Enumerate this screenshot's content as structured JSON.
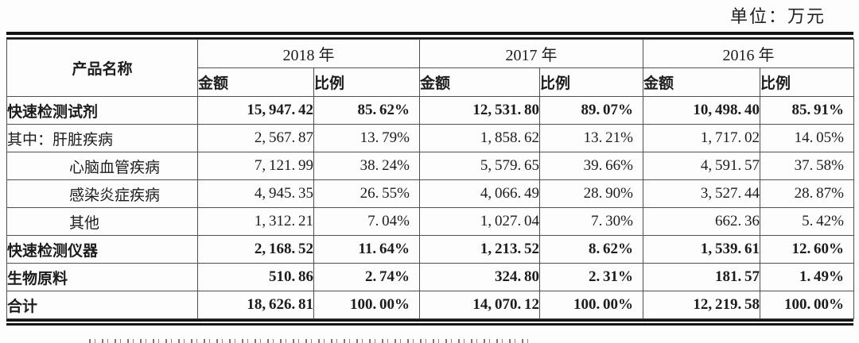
{
  "page": {
    "unit_label": "单位：万元"
  },
  "table": {
    "product_header": "产品名称",
    "year_groups": [
      {
        "year": "2018 年",
        "columns": [
          "金额",
          "比例"
        ]
      },
      {
        "year": "2017 年",
        "columns": [
          "金额",
          "比例"
        ]
      },
      {
        "year": "2016 年",
        "columns": [
          "金额",
          "比例"
        ]
      }
    ],
    "rows": [
      {
        "name": "快速检测试剂",
        "bold": true,
        "indent": 0,
        "values": [
          "15,947.42",
          "85.62%",
          "12,531.80",
          "89.07%",
          "10,498.40",
          "85.91%"
        ]
      },
      {
        "name": "其中：肝脏疾病",
        "bold": false,
        "indent": 0,
        "values": [
          "2,567.87",
          "13.79%",
          "1,858.62",
          "13.21%",
          "1,717.02",
          "14.05%"
        ]
      },
      {
        "name": "心脑血管疾病",
        "bold": false,
        "indent": 1,
        "values": [
          "7,121.99",
          "38.24%",
          "5,579.65",
          "39.66%",
          "4,591.57",
          "37.58%"
        ]
      },
      {
        "name": "感染炎症疾病",
        "bold": false,
        "indent": 1,
        "values": [
          "4,945.35",
          "26.55%",
          "4,066.49",
          "28.90%",
          "3,527.44",
          "28.87%"
        ]
      },
      {
        "name": "其他",
        "bold": false,
        "indent": 1,
        "values": [
          "1,312.21",
          "7.04%",
          "1,027.04",
          "7.30%",
          "662.36",
          "5.42%"
        ]
      },
      {
        "name": "快速检测仪器",
        "bold": true,
        "indent": 0,
        "values": [
          "2,168.52",
          "11.64%",
          "1,213.52",
          "8.62%",
          "1,539.61",
          "12.60%"
        ]
      },
      {
        "name": "生物原料",
        "bold": true,
        "indent": 0,
        "values": [
          "510.86",
          "2.74%",
          "324.80",
          "2.31%",
          "181.57",
          "1.49%"
        ]
      },
      {
        "name": "合计",
        "bold": true,
        "indent": 0,
        "values": [
          "18,626.81",
          "100.00%",
          "14,070.12",
          "100.00%",
          "12,219.58",
          "100.00%"
        ]
      }
    ]
  }
}
